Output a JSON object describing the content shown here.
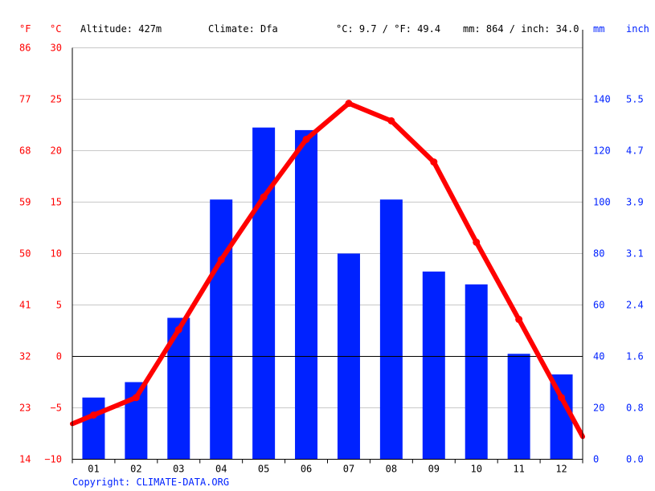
{
  "header": {
    "unit_f": "°F",
    "unit_c": "°C",
    "altitude": "Altitude: 427m",
    "climate": "Climate: Dfa",
    "avg_temp": "°C: 9.7 / °F: 49.4",
    "precip": "mm: 864 / inch: 34.0",
    "unit_mm": "mm",
    "unit_inch": "inch"
  },
  "copyright": "Copyright: CLIMATE-DATA.ORG",
  "colors": {
    "temperature": "#ff0000",
    "precipitation": "#0022ff",
    "grid": "#c8c8c8",
    "zero_line": "#000000"
  },
  "chart_data": {
    "type": "bar",
    "categories": [
      "01",
      "02",
      "03",
      "04",
      "05",
      "06",
      "07",
      "08",
      "09",
      "10",
      "11",
      "12"
    ],
    "series": [
      {
        "type": "bar",
        "axis": "right",
        "unit": "mm",
        "values": [
          24,
          30,
          55,
          101,
          129,
          128,
          80,
          101,
          73,
          68,
          41,
          33
        ]
      },
      {
        "type": "line",
        "axis": "left",
        "unit": "°C",
        "values": [
          -5.7,
          -4.0,
          2.6,
          9.4,
          15.5,
          21.1,
          24.6,
          22.9,
          18.9,
          11.1,
          3.6,
          -4.0
        ]
      }
    ],
    "ylim_left_c": [
      -10,
      30
    ],
    "ylim_right_mm": [
      0,
      160
    ],
    "ticks_c": [
      "30",
      "25",
      "20",
      "15",
      "10",
      "5",
      "0",
      "−5",
      "−10"
    ],
    "ticks_f": [
      "86",
      "77",
      "68",
      "59",
      "50",
      "41",
      "32",
      "23",
      "14"
    ],
    "ticks_mm": [
      "140",
      "120",
      "100",
      "80",
      "60",
      "40",
      "20",
      "0"
    ],
    "ticks_inch": [
      "5.5",
      "4.7",
      "3.9",
      "3.1",
      "2.4",
      "1.6",
      "0.8",
      "0.0"
    ],
    "grid": true
  }
}
